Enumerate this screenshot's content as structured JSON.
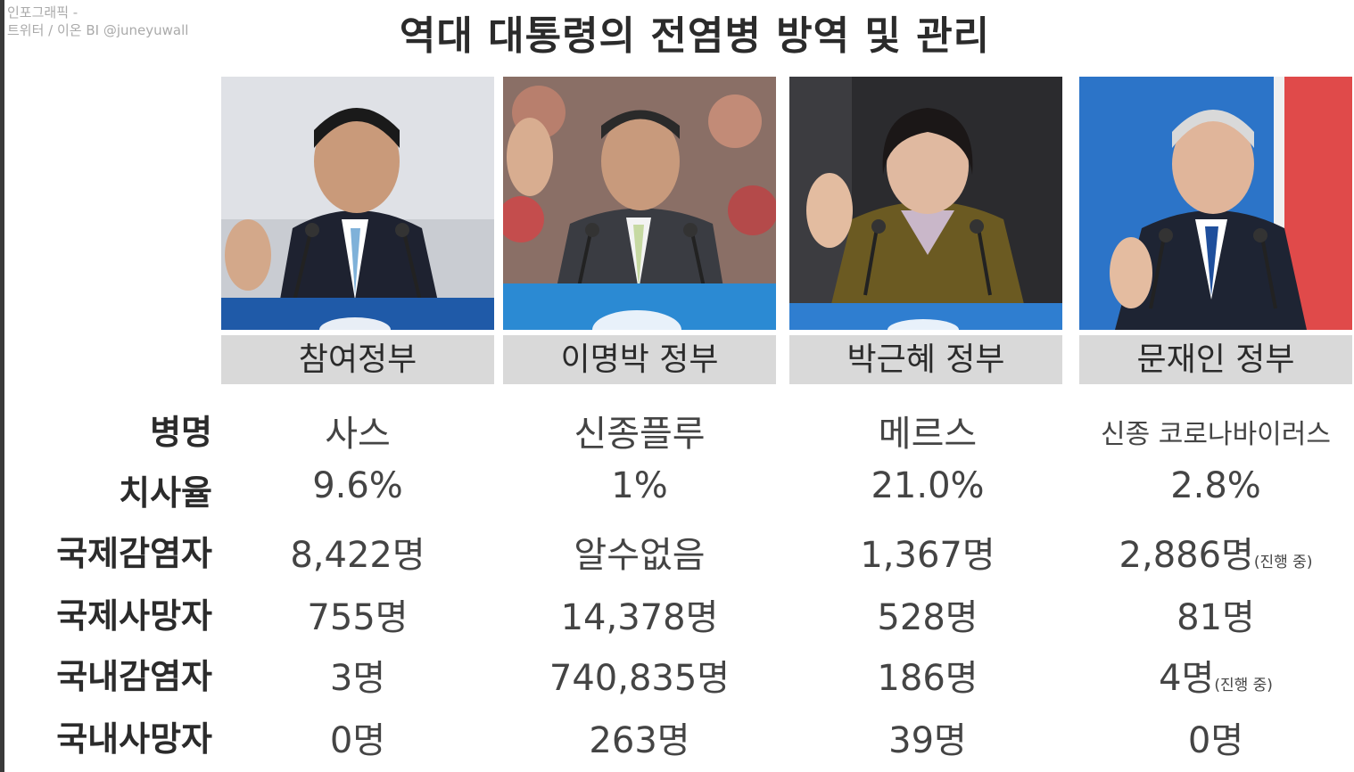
{
  "credit": {
    "line1": "인포그래픽 -",
    "line2": "트위터 / 이온 BI @juneyuwall"
  },
  "title": "역대 대통령의 전염병 방역 및 관리",
  "governments": [
    {
      "label": "참여정부",
      "photo": "president-noh-photo"
    },
    {
      "label": "이명박 정부",
      "photo": "president-lee-photo"
    },
    {
      "label": "박근혜 정부",
      "photo": "president-park-photo"
    },
    {
      "label": "문재인 정부",
      "photo": "president-moon-photo"
    }
  ],
  "rows": [
    {
      "label": "병명",
      "values": [
        "사스",
        "신종플루",
        "메르스",
        "신종 코로나바이러스"
      ]
    },
    {
      "label": "치사율",
      "values": [
        "9.6%",
        "1%",
        "21.0%",
        "2.8%"
      ]
    },
    {
      "label": "국제감염자",
      "values": [
        "8,422명",
        "알수없음",
        "1,367명",
        "2,886명"
      ],
      "note3": "(진행 중)"
    },
    {
      "label": "국제사망자",
      "values": [
        "755명",
        "14,378명",
        "528명",
        "81명"
      ]
    },
    {
      "label": "국내감염자",
      "values": [
        "3명",
        "740,835명",
        "186명",
        "4명"
      ],
      "note3": "(진행 중)"
    },
    {
      "label": "국내사망자",
      "values": [
        "0명",
        "263명",
        "39명",
        "0명"
      ]
    }
  ]
}
